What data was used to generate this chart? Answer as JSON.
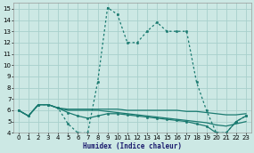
{
  "xlabel": "Humidex (Indice chaleur)",
  "bg_color": "#cce8e4",
  "grid_color": "#a8d0cc",
  "line_color": "#1a7a70",
  "xlim": [
    -0.5,
    23.5
  ],
  "ylim": [
    4,
    15.5
  ],
  "yticks": [
    4,
    5,
    6,
    7,
    8,
    9,
    10,
    11,
    12,
    13,
    14,
    15
  ],
  "xticks": [
    0,
    1,
    2,
    3,
    4,
    5,
    6,
    7,
    8,
    9,
    10,
    11,
    12,
    13,
    14,
    15,
    16,
    17,
    18,
    19,
    20,
    21,
    22,
    23
  ],
  "series": [
    {
      "x": [
        0,
        1,
        2,
        3,
        4,
        5,
        6,
        7,
        8,
        9,
        10,
        11,
        12,
        13,
        14,
        15,
        16,
        17,
        18,
        19,
        20,
        21,
        22,
        23
      ],
      "y": [
        6.0,
        5.5,
        6.5,
        6.5,
        6.2,
        4.8,
        4.0,
        4.0,
        8.5,
        15.1,
        14.5,
        12.0,
        12.0,
        13.0,
        13.8,
        13.0,
        13.0,
        13.0,
        8.5,
        6.0,
        4.0,
        4.0,
        5.0,
        5.5
      ],
      "style": "dotted",
      "marker": "o",
      "markersize": 1.8,
      "linewidth": 0.9
    },
    {
      "x": [
        0,
        1,
        2,
        3,
        4,
        5,
        6,
        7,
        8,
        9,
        10,
        11,
        12,
        13,
        14,
        15,
        16,
        17,
        18,
        19,
        20,
        21,
        22,
        23
      ],
      "y": [
        6.0,
        5.5,
        6.5,
        6.5,
        6.2,
        6.1,
        6.1,
        6.1,
        6.1,
        6.1,
        6.1,
        6.0,
        6.0,
        6.0,
        6.0,
        6.0,
        6.0,
        5.9,
        5.9,
        5.8,
        5.7,
        5.6,
        5.6,
        5.7
      ],
      "style": "solid",
      "marker": null,
      "linewidth": 0.9
    },
    {
      "x": [
        0,
        1,
        2,
        3,
        4,
        5,
        6,
        7,
        8,
        9,
        10,
        11,
        12,
        13,
        14,
        15,
        16,
        17,
        18,
        19,
        20,
        21,
        22,
        23
      ],
      "y": [
        6.0,
        5.5,
        6.5,
        6.5,
        6.2,
        6.0,
        6.0,
        6.0,
        6.0,
        5.9,
        5.8,
        5.7,
        5.6,
        5.5,
        5.4,
        5.3,
        5.2,
        5.1,
        5.0,
        4.9,
        4.7,
        4.6,
        4.8,
        5.0
      ],
      "style": "solid",
      "marker": null,
      "linewidth": 0.9
    },
    {
      "x": [
        0,
        1,
        2,
        3,
        4,
        5,
        6,
        7,
        8,
        9,
        10,
        11,
        12,
        13,
        14,
        15,
        16,
        17,
        18,
        19,
        20,
        21,
        22,
        23
      ],
      "y": [
        6.0,
        5.5,
        6.5,
        6.5,
        6.2,
        5.8,
        5.5,
        5.3,
        5.5,
        5.7,
        5.7,
        5.6,
        5.5,
        5.4,
        5.3,
        5.2,
        5.1,
        5.0,
        4.8,
        4.6,
        4.0,
        4.0,
        5.0,
        5.5
      ],
      "style": "solid",
      "marker": "o",
      "markersize": 1.8,
      "linewidth": 0.9
    }
  ]
}
